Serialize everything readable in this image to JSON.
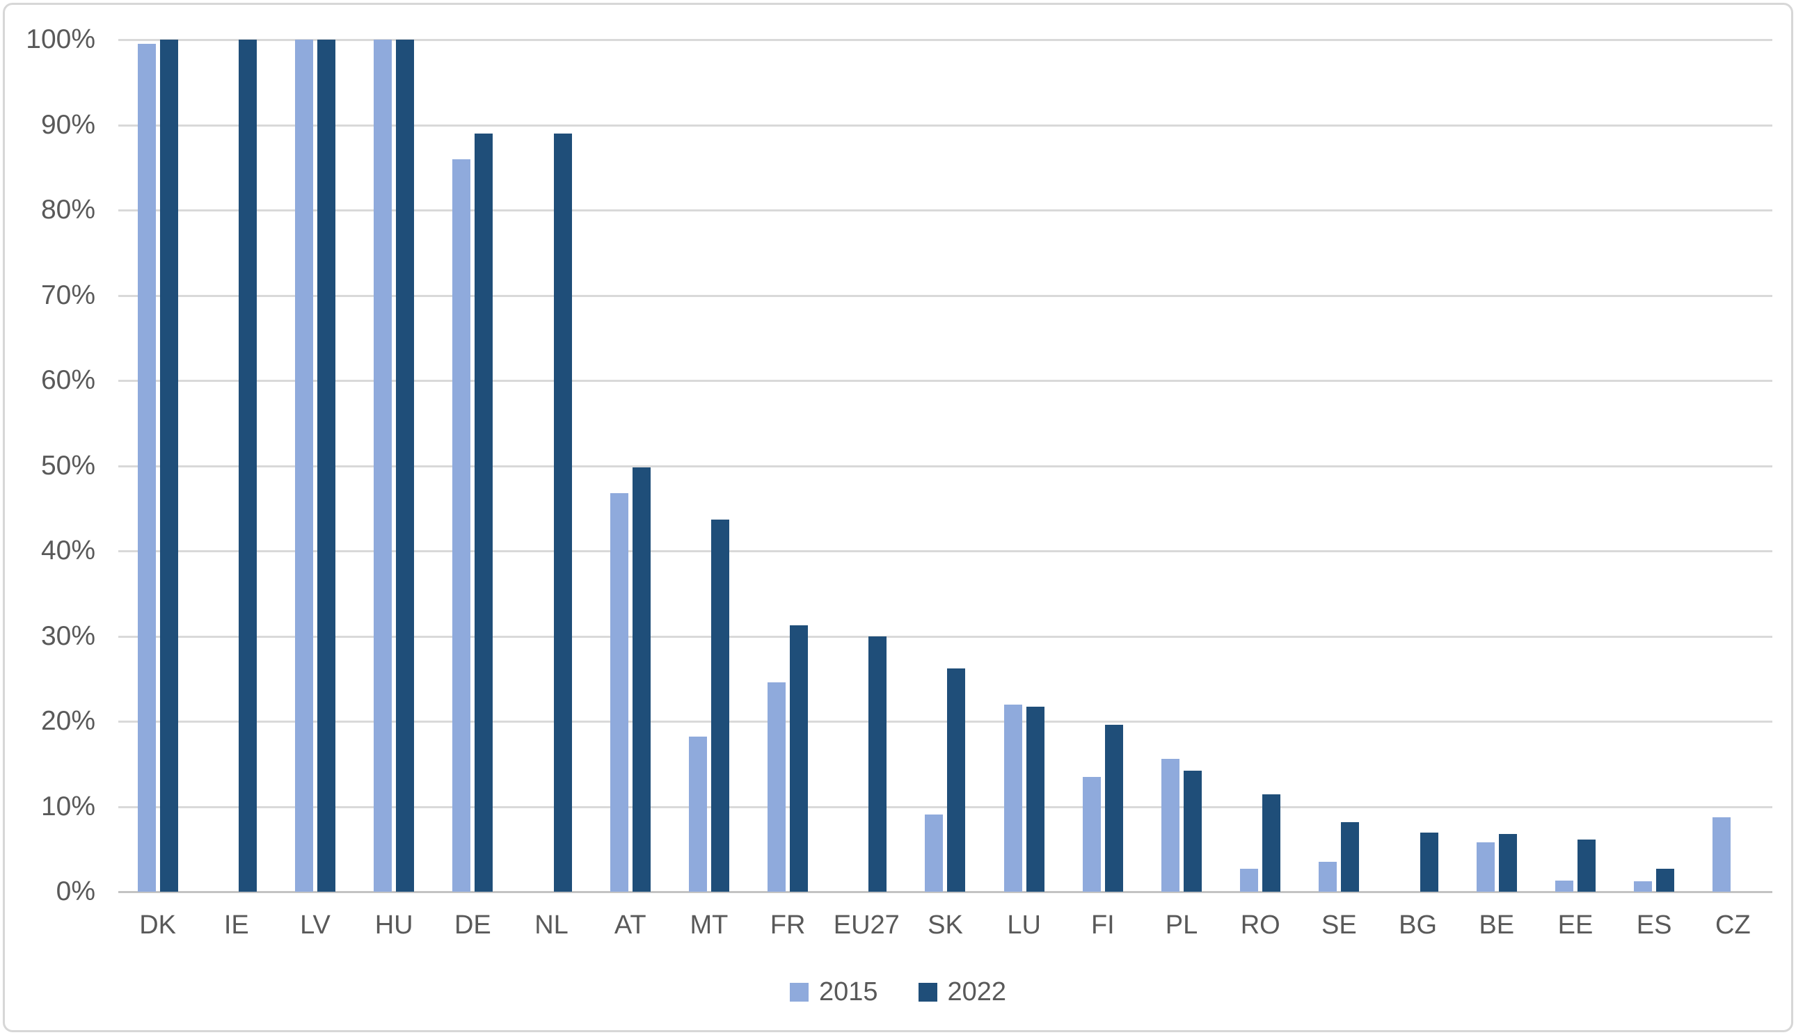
{
  "chart_data": {
    "type": "bar",
    "title": "",
    "categories": [
      "DK",
      "IE",
      "LV",
      "HU",
      "DE",
      "NL",
      "AT",
      "MT",
      "FR",
      "EU27",
      "SK",
      "LU",
      "FI",
      "PL",
      "RO",
      "SE",
      "BG",
      "BE",
      "EE",
      "ES",
      "CZ"
    ],
    "series": [
      {
        "name": "2015",
        "color": "#8faadc",
        "values": [
          99.5,
          null,
          100,
          100,
          86,
          null,
          46.8,
          18.2,
          24.6,
          null,
          9.1,
          22.0,
          13.5,
          15.6,
          2.7,
          3.5,
          null,
          5.8,
          1.3,
          1.2,
          8.7
        ]
      },
      {
        "name": "2022",
        "color": "#1f4e79",
        "values": [
          100,
          100,
          100,
          100,
          89,
          89,
          49.8,
          43.7,
          31.3,
          30.0,
          26.2,
          21.7,
          19.6,
          14.2,
          11.4,
          8.2,
          6.9,
          6.8,
          6.1,
          2.7,
          null
        ]
      }
    ],
    "xlabel": "",
    "ylabel": "",
    "ylim": [
      0,
      100
    ],
    "ytick_interval": 10,
    "yticks": [
      "100%",
      "90%",
      "80%",
      "70%",
      "60%",
      "50%",
      "40%",
      "30%",
      "20%",
      "10%",
      "0%"
    ],
    "grid": true,
    "legend_position": "bottom-center",
    "colors": {
      "gridline": "#d9d9d9",
      "baseline": "#c3c3c3",
      "axis_text": "#595959",
      "background": "#ffffff"
    }
  }
}
